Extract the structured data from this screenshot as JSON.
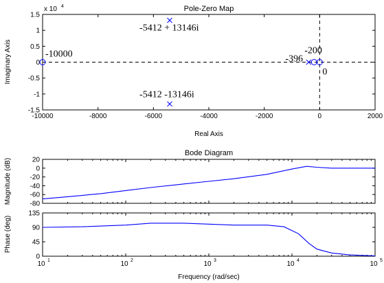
{
  "chart_data": [
    {
      "type": "scatter",
      "title": "Pole-Zero Map",
      "xlabel": "Real Axis",
      "ylabel": "Imaginary Axis",
      "y_exponent_label": "x 10",
      "y_exponent_power": "4",
      "xlim": [
        -10000,
        2000
      ],
      "ylim": [
        -15000,
        15000
      ],
      "xticks": [
        -10000,
        -8000,
        -6000,
        -4000,
        -2000,
        0,
        2000
      ],
      "xtick_labels": [
        "-10000",
        "-8000",
        "-6000",
        "-4000",
        "-2000",
        "0",
        "2000"
      ],
      "yticks": [
        15000,
        10000,
        5000,
        0,
        -5000,
        -10000,
        -15000
      ],
      "ytick_labels": [
        "1.5",
        "1",
        "0.5",
        "0",
        "-0.5",
        "-1",
        "-1.5"
      ],
      "poles": [
        {
          "x": -5412,
          "y": 13146
        },
        {
          "x": -5412,
          "y": -13146
        },
        {
          "x": -396,
          "y": 0
        }
      ],
      "zeros": [
        {
          "x": -10000,
          "y": 0
        },
        {
          "x": -200,
          "y": 0
        },
        {
          "x": 0,
          "y": 0
        }
      ],
      "annotations": [
        "-10000",
        "-5412 + 13146i",
        "-5412 -13146i",
        "-396",
        "-200",
        "0"
      ],
      "color": "#0000ff"
    },
    {
      "type": "line",
      "title": "Bode Diagram",
      "ylabel": "Magnitude (dB)",
      "x_log": true,
      "xlim": [
        10,
        100000
      ],
      "ylim": [
        -80,
        20
      ],
      "yticks": [
        20,
        0,
        -20,
        -40,
        -60,
        -80
      ],
      "ytick_labels": [
        "20",
        "0",
        "-20",
        "-40",
        "-60",
        "-80"
      ],
      "x": [
        10,
        20,
        50,
        100,
        200,
        500,
        1000,
        2000,
        5000,
        10000,
        15000,
        20000,
        30000,
        50000,
        100000
      ],
      "values": [
        -70,
        -65,
        -58,
        -51,
        -44,
        -36,
        -30,
        -24,
        -14,
        -2,
        4,
        2,
        0,
        0,
        0
      ],
      "color": "#0000ff"
    },
    {
      "type": "line",
      "ylabel": "Phase (deg)",
      "xlabel": "Frequency (rad/sec)",
      "x_log": true,
      "xlim": [
        10,
        100000
      ],
      "ylim": [
        0,
        135
      ],
      "yticks": [
        135,
        90,
        45,
        0
      ],
      "ytick_labels": [
        "135",
        "90",
        "45",
        "0"
      ],
      "xticks_base": "10",
      "xticks_powers": [
        "1",
        "2",
        "3",
        "4",
        "5"
      ],
      "x": [
        10,
        30,
        100,
        200,
        500,
        1000,
        2000,
        5000,
        8000,
        12000,
        16000,
        20000,
        30000,
        50000,
        100000
      ],
      "values": [
        90,
        92,
        97,
        103,
        103,
        100,
        97,
        97,
        92,
        70,
        40,
        22,
        10,
        4,
        1
      ],
      "color": "#0000ff"
    }
  ]
}
